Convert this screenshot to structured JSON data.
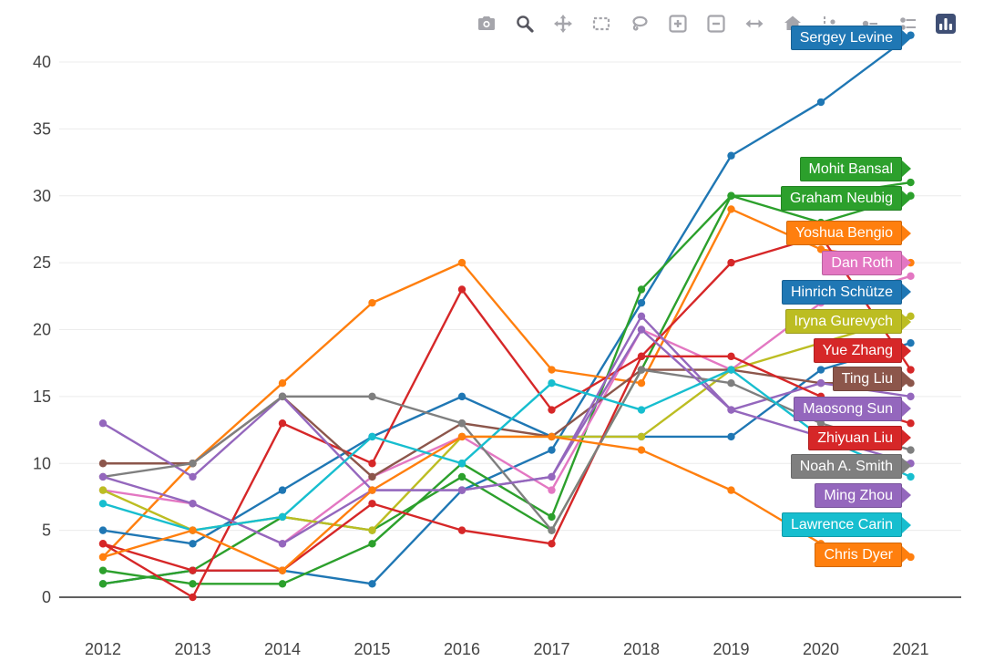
{
  "page": {
    "background": "#ffffff"
  },
  "modebar": {
    "icon_color": "#a5a5ab",
    "active_icon_color": "#55555e",
    "logo_color": "#3F4F75",
    "buttons": [
      {
        "name": "camera",
        "active": false
      },
      {
        "name": "zoom",
        "active": true
      },
      {
        "name": "pan",
        "active": false
      },
      {
        "name": "box-select",
        "active": false
      },
      {
        "name": "lasso-select",
        "active": false
      },
      {
        "name": "zoom-in",
        "active": false
      },
      {
        "name": "zoom-out",
        "active": false
      },
      {
        "name": "autoscale",
        "active": false
      },
      {
        "name": "reset-axes",
        "active": false
      },
      {
        "name": "toggle-spikelines",
        "active": false
      },
      {
        "name": "hover-closest",
        "active": false
      },
      {
        "name": "hover-compare",
        "active": false
      },
      {
        "name": "plotly-logo",
        "active": false
      }
    ]
  },
  "chart_data": {
    "type": "line",
    "title": "",
    "xlabel": "",
    "ylabel": "",
    "x": [
      2012,
      2013,
      2014,
      2015,
      2016,
      2017,
      2018,
      2019,
      2020,
      2021
    ],
    "xticks": [
      "2012",
      "2013",
      "2014",
      "2015",
      "2016",
      "2017",
      "2018",
      "2019",
      "2020",
      "2021"
    ],
    "yticks": [
      0,
      5,
      10,
      15,
      20,
      25,
      30,
      35,
      40
    ],
    "ylim": [
      -1.5,
      43.5
    ],
    "grid": true,
    "zeroline": true,
    "tick_color": "#444444",
    "legend_position": "right-flags",
    "series": [
      {
        "id": "sergey-levine",
        "label": "Sergey Levine",
        "color": "#1f77b4",
        "label_y": 41.8,
        "values": [
          1,
          2,
          2,
          1,
          8,
          11,
          22,
          33,
          37,
          42
        ]
      },
      {
        "id": "mohit-bansal",
        "label": "Mohit Bansal",
        "color": "#2ca02c",
        "label_y": 32.0,
        "values": [
          2,
          1,
          1,
          4,
          10,
          6,
          23,
          30,
          30,
          31
        ]
      },
      {
        "id": "graham-neubig",
        "label": "Graham Neubig",
        "color": "#2ca02c",
        "label_y": 29.8,
        "values": [
          1,
          2,
          6,
          5,
          9,
          5,
          17,
          30,
          28,
          30
        ]
      },
      {
        "id": "yoshua-bengio",
        "label": "Yoshua Bengio",
        "color": "#ff7f0e",
        "label_y": 27.2,
        "values": [
          3,
          10,
          16,
          22,
          25,
          17,
          16,
          29,
          26,
          25
        ]
      },
      {
        "id": "dan-roth",
        "label": "Dan Roth",
        "color": "#e377c2",
        "label_y": 25.0,
        "values": [
          8,
          7,
          4,
          9,
          12,
          8,
          20,
          17,
          22,
          24
        ]
      },
      {
        "id": "hinrich-schutze",
        "label": "Hinrich Schütze",
        "color": "#1f77b4",
        "label_y": 22.8,
        "values": [
          5,
          4,
          8,
          12,
          15,
          12,
          12,
          12,
          17,
          19
        ]
      },
      {
        "id": "iryna-gurevych",
        "label": "Iryna Gurevych",
        "color": "#bcbd22",
        "label_y": 20.6,
        "values": [
          8,
          5,
          6,
          5,
          12,
          12,
          12,
          17,
          19,
          21
        ]
      },
      {
        "id": "yue-zhang",
        "label": "Yue Zhang",
        "color": "#d62728",
        "label_y": 18.4,
        "values": [
          4,
          0,
          13,
          10,
          23,
          14,
          18,
          25,
          27,
          17
        ]
      },
      {
        "id": "ting-liu",
        "label": "Ting Liu",
        "color": "#8c564b",
        "label_y": 16.3,
        "values": [
          10,
          10,
          15,
          9,
          13,
          12,
          17,
          17,
          16,
          16
        ]
      },
      {
        "id": "maosong-sun",
        "label": "Maosong Sun",
        "color": "#9467bd",
        "label_y": 14.1,
        "values": [
          13,
          9,
          15,
          8,
          8,
          9,
          21,
          14,
          16,
          15
        ]
      },
      {
        "id": "zhiyuan-liu",
        "label": "Zhiyuan Liu",
        "color": "#d62728",
        "label_y": 11.9,
        "values": [
          4,
          2,
          2,
          7,
          5,
          4,
          18,
          18,
          15,
          13
        ]
      },
      {
        "id": "noah-a-smith",
        "label": "Noah A. Smith",
        "color": "#7f7f7f",
        "label_y": 9.8,
        "values": [
          9,
          10,
          15,
          15,
          13,
          5,
          17,
          16,
          13,
          11
        ]
      },
      {
        "id": "ming-zhou",
        "label": "Ming Zhou",
        "color": "#9467bd",
        "label_y": 7.6,
        "values": [
          9,
          7,
          4,
          8,
          8,
          9,
          20,
          14,
          12,
          10
        ]
      },
      {
        "id": "lawrence-carin",
        "label": "Lawrence Carin",
        "color": "#17becf",
        "label_y": 5.4,
        "values": [
          7,
          5,
          6,
          12,
          10,
          16,
          14,
          17,
          12,
          9
        ]
      },
      {
        "id": "chris-dyer",
        "label": "Chris Dyer",
        "color": "#ff7f0e",
        "label_y": 3.2,
        "values": [
          3,
          5,
          2,
          8,
          12,
          12,
          11,
          8,
          4,
          3
        ]
      }
    ]
  }
}
